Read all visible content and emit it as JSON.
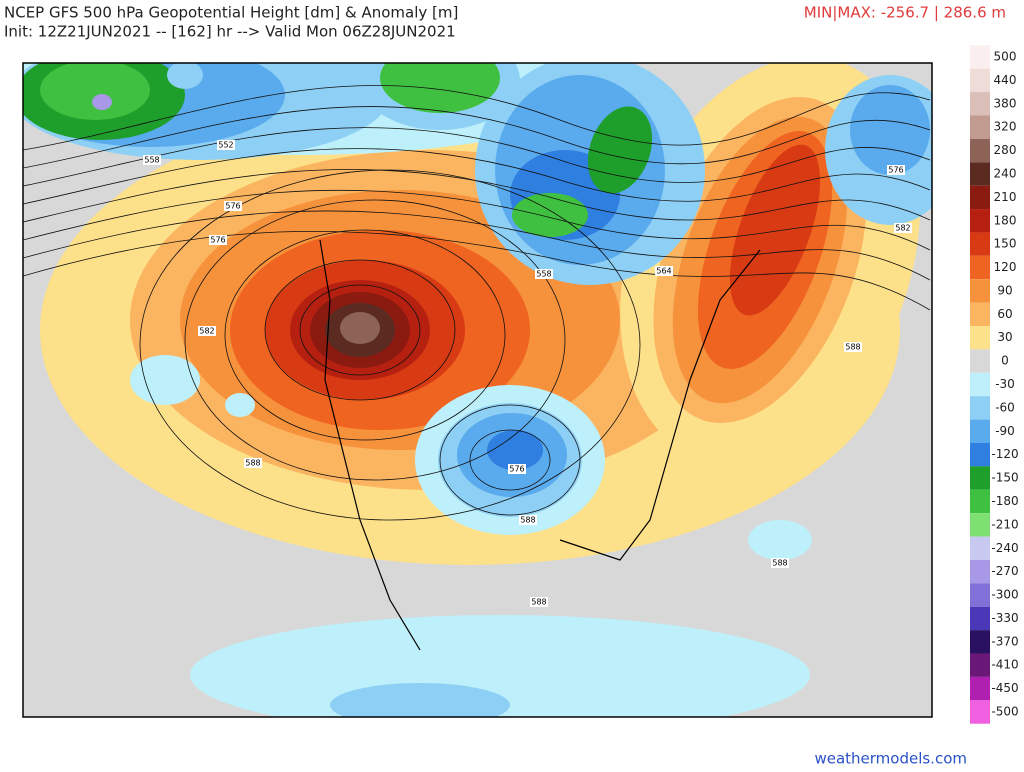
{
  "header": {
    "title": "NCEP GFS 500 hPa Geopotential Height [dm] & Anomaly [m]",
    "subtitle": "Init: 12Z21JUN2021 -- [162] hr --> Valid Mon 06Z28JUN2021",
    "minmax": "MIN|MAX: -256.7 | 286.6 m"
  },
  "colorbar": [
    {
      "value": 500,
      "color": "#fbeeee"
    },
    {
      "value": 440,
      "color": "#eddcd8"
    },
    {
      "value": 380,
      "color": "#d9bfb8"
    },
    {
      "value": 320,
      "color": "#c19a90"
    },
    {
      "value": 280,
      "color": "#8d6358"
    },
    {
      "value": 240,
      "color": "#5b2b22"
    },
    {
      "value": 210,
      "color": "#8b1a10"
    },
    {
      "value": 180,
      "color": "#b52010"
    },
    {
      "value": 150,
      "color": "#d83a14"
    },
    {
      "value": 120,
      "color": "#ef6420"
    },
    {
      "value": 90,
      "color": "#f7923c"
    },
    {
      "value": 60,
      "color": "#fbb460"
    },
    {
      "value": 30,
      "color": "#fde08a"
    },
    {
      "value": 0,
      "color": "#d8d8d8"
    },
    {
      "value": -30,
      "color": "#bdf0fa"
    },
    {
      "value": -60,
      "color": "#8ed0f5"
    },
    {
      "value": -90,
      "color": "#5aaaee"
    },
    {
      "value": -120,
      "color": "#2f7fe0"
    },
    {
      "value": -150,
      "color": "#1e9e2a"
    },
    {
      "value": -180,
      "color": "#3fc040"
    },
    {
      "value": -210,
      "color": "#7ee070"
    },
    {
      "value": -240,
      "color": "#c8c8f0"
    },
    {
      "value": -270,
      "color": "#a898e8"
    },
    {
      "value": -300,
      "color": "#8070d8"
    },
    {
      "value": -330,
      "color": "#4a38b8"
    },
    {
      "value": -370,
      "color": "#2a1060"
    },
    {
      "value": -410,
      "color": "#6a1878"
    },
    {
      "value": -450,
      "color": "#b020b0"
    },
    {
      "value": -500,
      "color": "#f060e0"
    }
  ],
  "contour_labels": [
    558,
    552,
    576,
    576,
    582,
    588,
    558,
    564,
    576,
    582,
    588,
    576,
    588,
    588,
    588
  ],
  "footer": {
    "credit": "weathermodels.com"
  }
}
